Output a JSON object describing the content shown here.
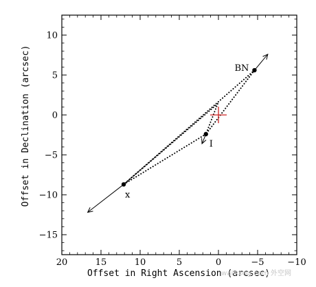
{
  "chart_data": {
    "type": "scatter",
    "title": "",
    "xlabel": "Offset in Right Ascension (arcsec)",
    "ylabel": "Offset in Declination (arcsec)",
    "xlim": [
      20,
      -10
    ],
    "ylim": [
      -17.5,
      12.5
    ],
    "xticks": [
      20,
      15,
      10,
      5,
      0,
      -5,
      -10
    ],
    "yticks": [
      10,
      5,
      0,
      -5,
      -10,
      -15
    ],
    "xtick_labels": [
      "20",
      "15",
      "10",
      "5",
      "0",
      "−5",
      "−10"
    ],
    "ytick_labels": [
      "10",
      "5",
      "0",
      "−5",
      "−10",
      "−15"
    ],
    "x_reversed": true,
    "grid": false,
    "points": [
      {
        "label": "BN",
        "x": -4.6,
        "y": 5.6
      },
      {
        "label": "I",
        "x": 1.6,
        "y": -2.4
      },
      {
        "label": "x",
        "x": 12.1,
        "y": -8.7
      }
    ],
    "center_marker": {
      "x": 0.0,
      "y": 0.0,
      "color": "#cc2222"
    },
    "arrows": [
      {
        "from_label": "BN",
        "x0": -4.6,
        "y0": 5.6,
        "x1": -6.3,
        "y1": 7.6
      },
      {
        "from_label": "I",
        "x0": 1.6,
        "y0": -2.4,
        "x1": 2.1,
        "y1": -3.6
      },
      {
        "from_label": "x",
        "x0": 12.1,
        "y0": -8.7,
        "x1": 16.7,
        "y1": -12.2
      }
    ],
    "dotted_lines": [
      {
        "x0": -4.6,
        "y0": 5.6,
        "x1": 12.1,
        "y1": -8.7
      },
      {
        "x0": 0.1,
        "y0": 1.4,
        "x1": 12.1,
        "y1": -8.7
      },
      {
        "x0": 1.6,
        "y0": -2.4,
        "x1": 12.1,
        "y1": -8.7
      },
      {
        "x0": -4.6,
        "y0": 5.6,
        "x1": 1.6,
        "y1": -2.4
      },
      {
        "x0": 0.1,
        "y0": 1.4,
        "x1": 1.6,
        "y1": -2.4
      }
    ]
  },
  "watermark_text": "wailkong.com 外空网"
}
